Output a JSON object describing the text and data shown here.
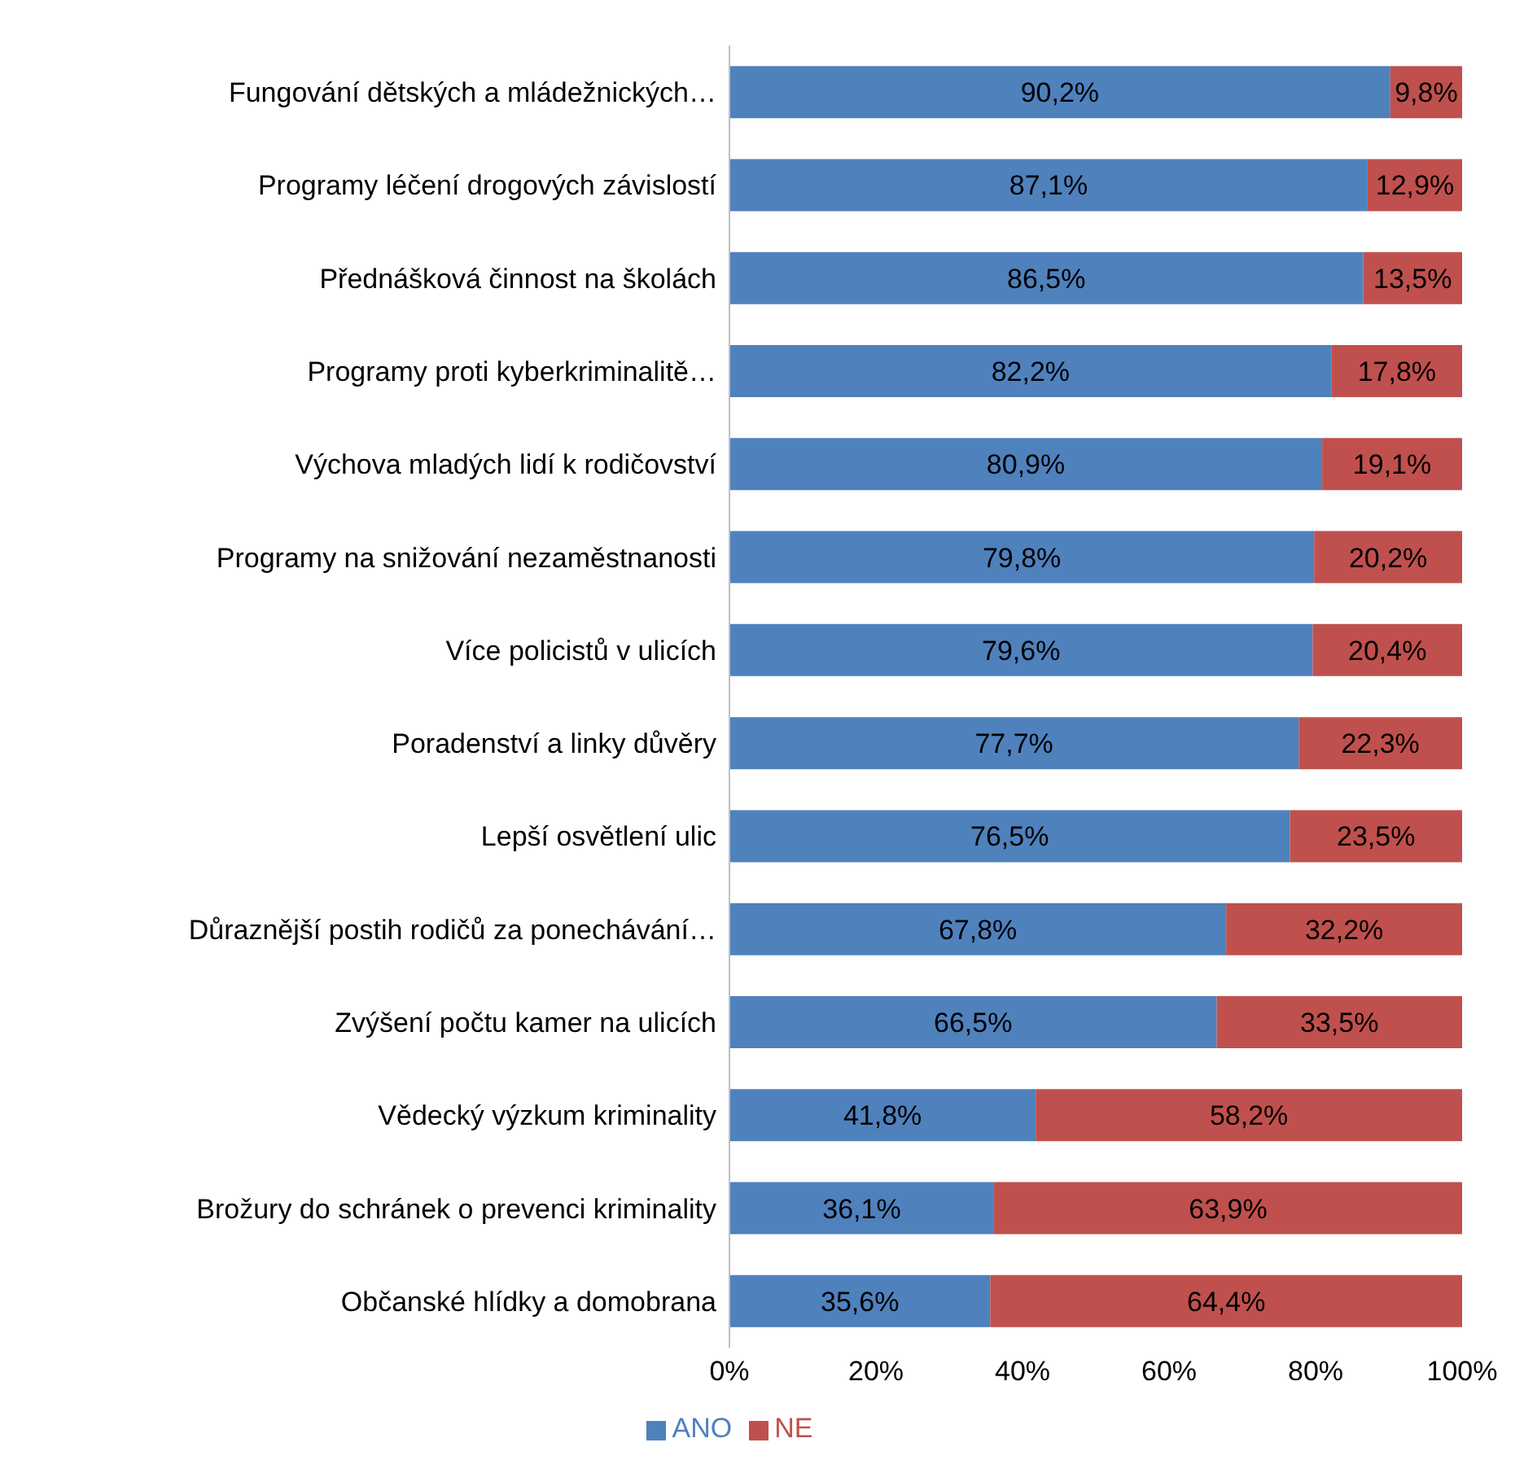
{
  "chart_data": {
    "type": "bar",
    "orientation": "horizontal",
    "stacked": true,
    "categories": [
      "Fungování dětských a mládežnických…",
      "Programy léčení drogových závislostí",
      "Přednášková činnost na školách",
      "Programy proti kyberkriminalitě…",
      "Výchova mladých lidí k rodičovství",
      "Programy na snižování nezaměstnanosti",
      "Více policistů v ulicích",
      "Poradenství a linky důvěry",
      "Lepší osvětlení ulic",
      "Důraznější postih rodičů za ponechávání…",
      "Zvýšení počtu kamer na ulicích",
      "Vědecký výzkum kriminality",
      "Brožury do schránek o prevenci kriminality",
      "Občanské hlídky a domobrana"
    ],
    "series": [
      {
        "name": "ANO",
        "color": "#4f81bd",
        "values": [
          90.2,
          87.1,
          86.5,
          82.2,
          80.9,
          79.8,
          79.6,
          77.7,
          76.5,
          67.8,
          66.5,
          41.8,
          36.1,
          35.6
        ],
        "value_labels": [
          "90,2%",
          "87,1%",
          "86,5%",
          "82,2%",
          "80,9%",
          "79,8%",
          "79,6%",
          "77,7%",
          "76,5%",
          "67,8%",
          "66,5%",
          "41,8%",
          "36,1%",
          "35,6%"
        ]
      },
      {
        "name": "NE",
        "color": "#c0504d",
        "values": [
          9.8,
          12.9,
          13.5,
          17.8,
          19.1,
          20.2,
          20.4,
          22.3,
          23.5,
          32.2,
          33.5,
          58.2,
          63.9,
          64.4
        ],
        "value_labels": [
          "9,8%",
          "12,9%",
          "13,5%",
          "17,8%",
          "19,1%",
          "20,2%",
          "20,4%",
          "22,3%",
          "23,5%",
          "32,2%",
          "33,5%",
          "58,2%",
          "63,9%",
          "64,4%"
        ]
      }
    ],
    "xlim": [
      0,
      100
    ],
    "xticks": [
      {
        "value": 0,
        "label": "0%"
      },
      {
        "value": 20,
        "label": "20%"
      },
      {
        "value": 40,
        "label": "40%"
      },
      {
        "value": 60,
        "label": "60%"
      },
      {
        "value": 80,
        "label": "80%"
      },
      {
        "value": 100,
        "label": "100%"
      }
    ],
    "grid": false,
    "legend": "bottom"
  }
}
